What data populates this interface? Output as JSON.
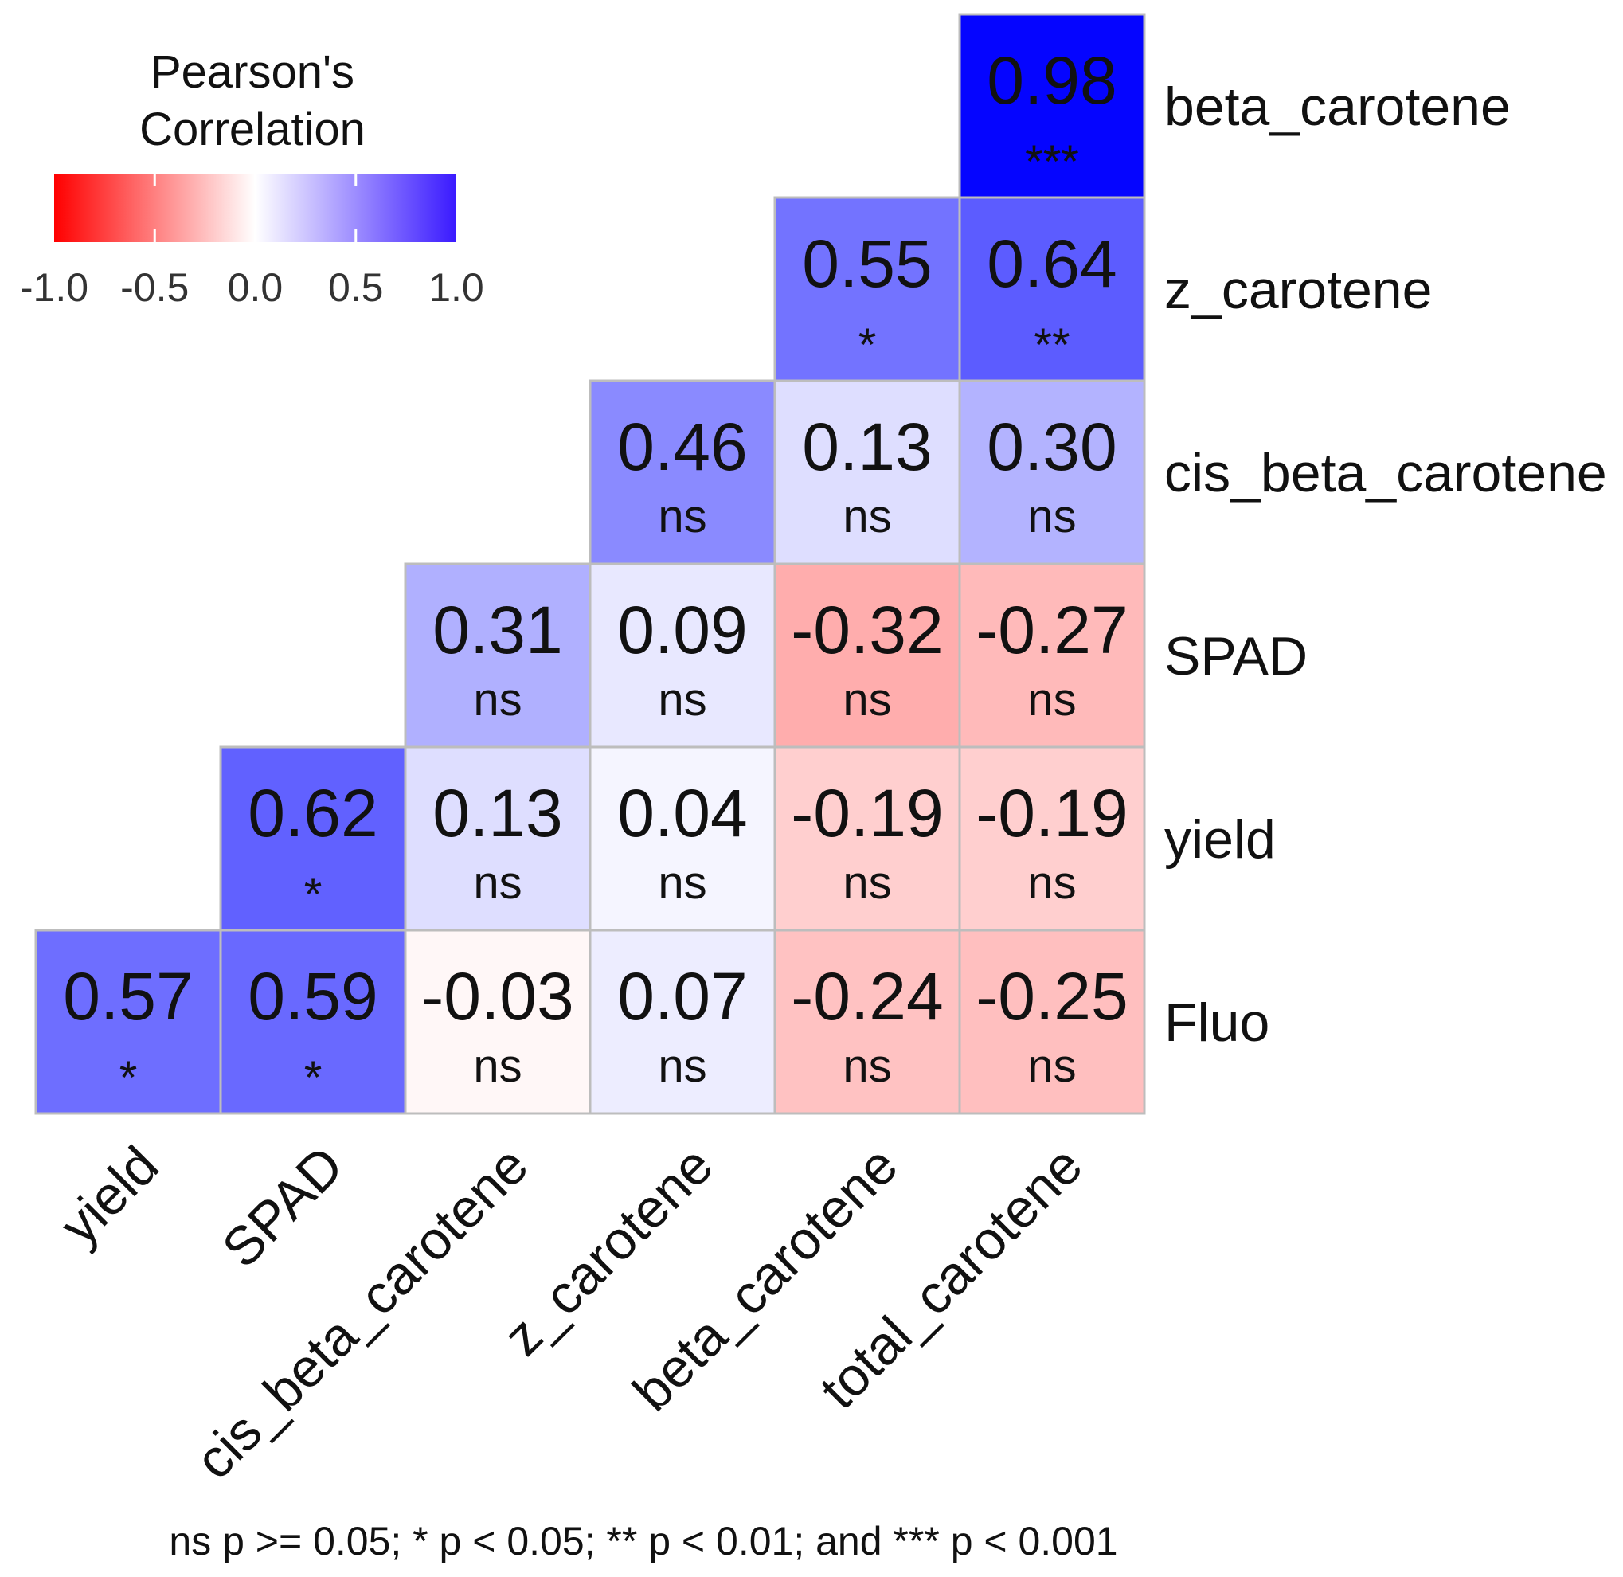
{
  "chart_data": {
    "type": "heatmap",
    "title": "",
    "legend": {
      "title_lines": [
        "Pearson's",
        "Correlation"
      ],
      "ticks": [
        "-1.0",
        "-0.5",
        "0.0",
        "0.5",
        "1.0"
      ],
      "range": [
        -1.0,
        1.0
      ],
      "colors": {
        "low": "#ff0000",
        "mid": "#ffffff",
        "high": "#0000ff"
      },
      "placement": "top-left"
    },
    "row_labels": [
      "beta_carotene",
      "z_carotene",
      "cis_beta_carotene",
      "SPAD",
      "yield",
      "Fluo"
    ],
    "column_labels": [
      "yield",
      "SPAD",
      "cis_beta_carotene",
      "z_carotene",
      "beta_carotene",
      "total_carotene"
    ],
    "cells": [
      {
        "row": "beta_carotene",
        "col": "total_carotene",
        "value": 0.98,
        "label": "0.98",
        "sig": "***"
      },
      {
        "row": "z_carotene",
        "col": "beta_carotene",
        "value": 0.55,
        "label": "0.55",
        "sig": "*"
      },
      {
        "row": "z_carotene",
        "col": "total_carotene",
        "value": 0.64,
        "label": "0.64",
        "sig": "**"
      },
      {
        "row": "cis_beta_carotene",
        "col": "z_carotene",
        "value": 0.46,
        "label": "0.46",
        "sig": "ns"
      },
      {
        "row": "cis_beta_carotene",
        "col": "beta_carotene",
        "value": 0.13,
        "label": "0.13",
        "sig": "ns"
      },
      {
        "row": "cis_beta_carotene",
        "col": "total_carotene",
        "value": 0.3,
        "label": "0.30",
        "sig": "ns"
      },
      {
        "row": "SPAD",
        "col": "cis_beta_carotene",
        "value": 0.31,
        "label": "0.31",
        "sig": "ns"
      },
      {
        "row": "SPAD",
        "col": "z_carotene",
        "value": 0.09,
        "label": "0.09",
        "sig": "ns"
      },
      {
        "row": "SPAD",
        "col": "beta_carotene",
        "value": -0.32,
        "label": "-0.32",
        "sig": "ns"
      },
      {
        "row": "SPAD",
        "col": "total_carotene",
        "value": -0.27,
        "label": "-0.27",
        "sig": "ns"
      },
      {
        "row": "yield",
        "col": "SPAD",
        "value": 0.62,
        "label": "0.62",
        "sig": "*"
      },
      {
        "row": "yield",
        "col": "cis_beta_carotene",
        "value": 0.13,
        "label": "0.13",
        "sig": "ns"
      },
      {
        "row": "yield",
        "col": "z_carotene",
        "value": 0.04,
        "label": "0.04",
        "sig": "ns"
      },
      {
        "row": "yield",
        "col": "beta_carotene",
        "value": -0.19,
        "label": "-0.19",
        "sig": "ns"
      },
      {
        "row": "yield",
        "col": "total_carotene",
        "value": -0.19,
        "label": "-0.19",
        "sig": "ns"
      },
      {
        "row": "Fluo",
        "col": "yield",
        "value": 0.57,
        "label": "0.57",
        "sig": "*"
      },
      {
        "row": "Fluo",
        "col": "SPAD",
        "value": 0.59,
        "label": "0.59",
        "sig": "*"
      },
      {
        "row": "Fluo",
        "col": "cis_beta_carotene",
        "value": -0.03,
        "label": "-0.03",
        "sig": "ns"
      },
      {
        "row": "Fluo",
        "col": "z_carotene",
        "value": 0.07,
        "label": "0.07",
        "sig": "ns"
      },
      {
        "row": "Fluo",
        "col": "beta_carotene",
        "value": -0.24,
        "label": "-0.24",
        "sig": "ns"
      },
      {
        "row": "Fluo",
        "col": "total_carotene",
        "value": -0.25,
        "label": "-0.25",
        "sig": "ns"
      }
    ],
    "footnote": "ns p >= 0.05; * p < 0.05; ** p < 0.01; and *** p < 0.001"
  }
}
